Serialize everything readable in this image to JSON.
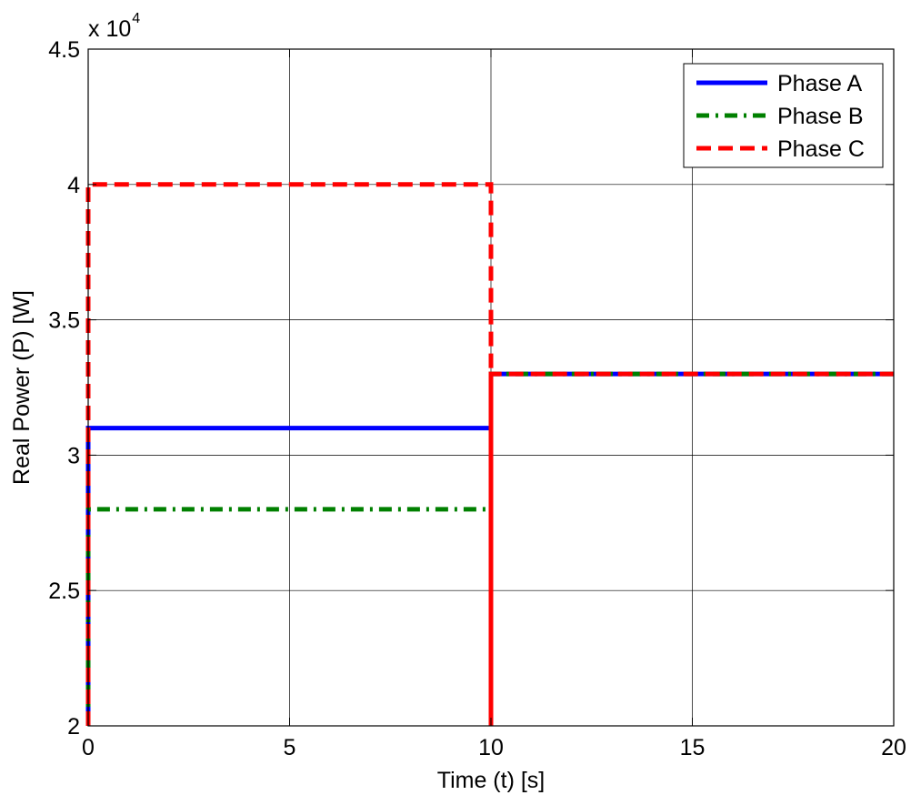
{
  "chart_data": {
    "type": "line",
    "title": "",
    "xlabel": "Time (t) [s]",
    "ylabel": "Real Power (P) [W]",
    "y_multiplier_base": "x 10",
    "y_multiplier_exponent": "4",
    "xlim": [
      0,
      20
    ],
    "ylim": [
      2,
      4.5
    ],
    "x_ticks": [
      0,
      5,
      10,
      15,
      20
    ],
    "y_ticks": [
      2,
      2.5,
      3,
      3.5,
      4,
      4.5
    ],
    "x_tick_labels": [
      "0",
      "5",
      "10",
      "15",
      "20"
    ],
    "y_tick_labels": [
      "2",
      "2.5",
      "3",
      "3.5",
      "4",
      "4.5"
    ],
    "grid": true,
    "legend_position": "top-right",
    "series": [
      {
        "name": "Phase A",
        "color": "#0000ff",
        "style": "solid",
        "x": [
          0,
          0,
          10,
          10,
          10,
          20
        ],
        "y": [
          2,
          3.1,
          3.1,
          2,
          3.3,
          3.3
        ]
      },
      {
        "name": "Phase B",
        "color": "#008000",
        "style": "dashdot",
        "x": [
          0,
          0,
          10,
          10,
          10,
          20
        ],
        "y": [
          2,
          2.8,
          2.8,
          2,
          3.3,
          3.3
        ]
      },
      {
        "name": "Phase C",
        "color": "#ff0000",
        "style": "dashed",
        "x": [
          0,
          0,
          10,
          10,
          10,
          20
        ],
        "y": [
          2,
          4.0,
          4.0,
          2,
          3.3,
          3.3
        ]
      }
    ]
  }
}
